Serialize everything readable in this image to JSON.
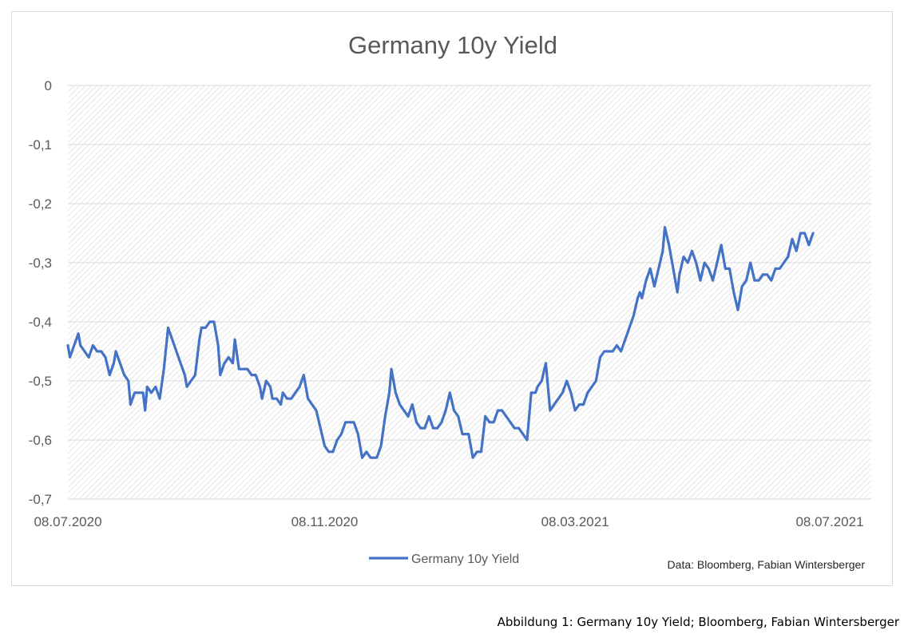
{
  "caption": "Abbildung 1: Germany 10y Yield; Bloomberg, Fabian Wintersberger",
  "source_note": "Data: Bloomberg, Fabian Wintersberger",
  "colors": {
    "line": "#4472c4",
    "gridline": "#d9d9d9",
    "text": "#595959"
  },
  "chart_data": {
    "type": "line",
    "title": "Germany 10y Yield",
    "xlabel": "",
    "ylabel": "",
    "ylim": [
      -0.7,
      0
    ],
    "yticks": [
      0,
      -0.1,
      -0.2,
      -0.3,
      -0.4,
      -0.5,
      -0.6,
      -0.7
    ],
    "ytick_labels": [
      "0",
      "-0,1",
      "-0,2",
      "-0,3",
      "-0,4",
      "-0,5",
      "-0,6",
      "-0,7"
    ],
    "xlim": [
      "2020-07-08",
      "2021-07-08"
    ],
    "xticks": [
      "2020-07-08",
      "2020-11-08",
      "2021-03-08",
      "2021-07-08"
    ],
    "xtick_labels": [
      "08.07.2020",
      "08.11.2020",
      "08.03.2021",
      "08.07.2021"
    ],
    "grid": true,
    "legend_position": "bottom-center",
    "series": [
      {
        "name": "Germany 10y Yield",
        "points": [
          [
            "2020-07-08",
            -0.44
          ],
          [
            "2020-07-09",
            -0.46
          ],
          [
            "2020-07-11",
            -0.44
          ],
          [
            "2020-07-13",
            -0.42
          ],
          [
            "2020-07-14",
            -0.44
          ],
          [
            "2020-07-16",
            -0.45
          ],
          [
            "2020-07-18",
            -0.46
          ],
          [
            "2020-07-20",
            -0.44
          ],
          [
            "2020-07-22",
            -0.45
          ],
          [
            "2020-07-24",
            -0.45
          ],
          [
            "2020-07-26",
            -0.46
          ],
          [
            "2020-07-28",
            -0.49
          ],
          [
            "2020-07-30",
            -0.47
          ],
          [
            "2020-07-31",
            -0.45
          ],
          [
            "2020-08-02",
            -0.47
          ],
          [
            "2020-08-04",
            -0.49
          ],
          [
            "2020-08-06",
            -0.5
          ],
          [
            "2020-08-07",
            -0.54
          ],
          [
            "2020-08-09",
            -0.52
          ],
          [
            "2020-08-11",
            -0.52
          ],
          [
            "2020-08-13",
            -0.52
          ],
          [
            "2020-08-14",
            -0.55
          ],
          [
            "2020-08-15",
            -0.51
          ],
          [
            "2020-08-17",
            -0.52
          ],
          [
            "2020-08-19",
            -0.51
          ],
          [
            "2020-08-21",
            -0.53
          ],
          [
            "2020-08-23",
            -0.48
          ],
          [
            "2020-08-25",
            -0.41
          ],
          [
            "2020-08-27",
            -0.43
          ],
          [
            "2020-08-29",
            -0.45
          ],
          [
            "2020-08-31",
            -0.47
          ],
          [
            "2020-09-02",
            -0.49
          ],
          [
            "2020-09-03",
            -0.51
          ],
          [
            "2020-09-05",
            -0.5
          ],
          [
            "2020-09-07",
            -0.49
          ],
          [
            "2020-09-09",
            -0.43
          ],
          [
            "2020-09-10",
            -0.41
          ],
          [
            "2020-09-12",
            -0.41
          ],
          [
            "2020-09-14",
            -0.4
          ],
          [
            "2020-09-16",
            -0.4
          ],
          [
            "2020-09-18",
            -0.44
          ],
          [
            "2020-09-19",
            -0.49
          ],
          [
            "2020-09-21",
            -0.47
          ],
          [
            "2020-09-23",
            -0.46
          ],
          [
            "2020-09-25",
            -0.47
          ],
          [
            "2020-09-26",
            -0.43
          ],
          [
            "2020-09-28",
            -0.48
          ],
          [
            "2020-09-30",
            -0.48
          ],
          [
            "2020-10-02",
            -0.48
          ],
          [
            "2020-10-04",
            -0.49
          ],
          [
            "2020-10-06",
            -0.49
          ],
          [
            "2020-10-08",
            -0.51
          ],
          [
            "2020-10-09",
            -0.53
          ],
          [
            "2020-10-11",
            -0.5
          ],
          [
            "2020-10-13",
            -0.51
          ],
          [
            "2020-10-14",
            -0.53
          ],
          [
            "2020-10-16",
            -0.53
          ],
          [
            "2020-10-18",
            -0.54
          ],
          [
            "2020-10-19",
            -0.52
          ],
          [
            "2020-10-21",
            -0.53
          ],
          [
            "2020-10-23",
            -0.53
          ],
          [
            "2020-10-25",
            -0.52
          ],
          [
            "2020-10-27",
            -0.51
          ],
          [
            "2020-10-29",
            -0.49
          ],
          [
            "2020-10-31",
            -0.53
          ],
          [
            "2020-11-02",
            -0.54
          ],
          [
            "2020-11-04",
            -0.55
          ],
          [
            "2020-11-06",
            -0.58
          ],
          [
            "2020-11-08",
            -0.61
          ],
          [
            "2020-11-10",
            -0.62
          ],
          [
            "2020-11-12",
            -0.62
          ],
          [
            "2020-11-14",
            -0.6
          ],
          [
            "2020-11-16",
            -0.59
          ],
          [
            "2020-11-18",
            -0.57
          ],
          [
            "2020-11-20",
            -0.57
          ],
          [
            "2020-11-22",
            -0.57
          ],
          [
            "2020-11-24",
            -0.59
          ],
          [
            "2020-11-26",
            -0.63
          ],
          [
            "2020-11-28",
            -0.62
          ],
          [
            "2020-11-30",
            -0.63
          ],
          [
            "2020-12-01",
            -0.63
          ],
          [
            "2020-12-03",
            -0.63
          ],
          [
            "2020-12-05",
            -0.61
          ],
          [
            "2020-12-07",
            -0.56
          ],
          [
            "2020-12-09",
            -0.52
          ],
          [
            "2020-12-10",
            -0.48
          ],
          [
            "2020-12-12",
            -0.52
          ],
          [
            "2020-12-14",
            -0.54
          ],
          [
            "2020-12-16",
            -0.55
          ],
          [
            "2020-12-18",
            -0.56
          ],
          [
            "2020-12-20",
            -0.54
          ],
          [
            "2020-12-22",
            -0.57
          ],
          [
            "2020-12-24",
            -0.58
          ],
          [
            "2020-12-26",
            -0.58
          ],
          [
            "2020-12-28",
            -0.56
          ],
          [
            "2020-12-30",
            -0.58
          ],
          [
            "2021-01-01",
            -0.58
          ],
          [
            "2021-01-03",
            -0.57
          ],
          [
            "2021-01-05",
            -0.55
          ],
          [
            "2021-01-07",
            -0.52
          ],
          [
            "2021-01-09",
            -0.55
          ],
          [
            "2021-01-11",
            -0.56
          ],
          [
            "2021-01-13",
            -0.59
          ],
          [
            "2021-01-14",
            -0.59
          ],
          [
            "2021-01-16",
            -0.59
          ],
          [
            "2021-01-18",
            -0.63
          ],
          [
            "2021-01-20",
            -0.62
          ],
          [
            "2021-01-22",
            -0.62
          ],
          [
            "2021-01-24",
            -0.56
          ],
          [
            "2021-01-26",
            -0.57
          ],
          [
            "2021-01-28",
            -0.57
          ],
          [
            "2021-01-30",
            -0.55
          ],
          [
            "2021-02-01",
            -0.55
          ],
          [
            "2021-02-03",
            -0.56
          ],
          [
            "2021-02-05",
            -0.57
          ],
          [
            "2021-02-07",
            -0.58
          ],
          [
            "2021-02-09",
            -0.58
          ],
          [
            "2021-02-11",
            -0.59
          ],
          [
            "2021-02-13",
            -0.6
          ],
          [
            "2021-02-15",
            -0.52
          ],
          [
            "2021-02-17",
            -0.52
          ],
          [
            "2021-02-18",
            -0.51
          ],
          [
            "2021-02-20",
            -0.5
          ],
          [
            "2021-02-22",
            -0.47
          ],
          [
            "2021-02-24",
            -0.55
          ],
          [
            "2021-02-26",
            -0.54
          ],
          [
            "2021-02-28",
            -0.53
          ],
          [
            "2021-03-02",
            -0.52
          ],
          [
            "2021-03-04",
            -0.5
          ],
          [
            "2021-03-06",
            -0.52
          ],
          [
            "2021-03-08",
            -0.55
          ],
          [
            "2021-03-10",
            -0.54
          ],
          [
            "2021-03-12",
            -0.54
          ],
          [
            "2021-03-14",
            -0.52
          ],
          [
            "2021-03-16",
            -0.51
          ],
          [
            "2021-03-18",
            -0.5
          ],
          [
            "2021-03-20",
            -0.46
          ],
          [
            "2021-03-22",
            -0.45
          ],
          [
            "2021-03-24",
            -0.45
          ],
          [
            "2021-03-26",
            -0.45
          ],
          [
            "2021-03-28",
            -0.44
          ],
          [
            "2021-03-30",
            -0.45
          ],
          [
            "2021-04-01",
            -0.43
          ],
          [
            "2021-04-03",
            -0.41
          ],
          [
            "2021-04-05",
            -0.39
          ],
          [
            "2021-04-07",
            -0.36
          ],
          [
            "2021-04-08",
            -0.35
          ],
          [
            "2021-04-09",
            -0.36
          ],
          [
            "2021-04-11",
            -0.33
          ],
          [
            "2021-04-13",
            -0.31
          ],
          [
            "2021-04-15",
            -0.34
          ],
          [
            "2021-04-17",
            -0.31
          ],
          [
            "2021-04-19",
            -0.28
          ],
          [
            "2021-04-20",
            -0.24
          ],
          [
            "2021-04-22",
            -0.27
          ],
          [
            "2021-04-24",
            -0.31
          ],
          [
            "2021-04-26",
            -0.35
          ],
          [
            "2021-04-27",
            -0.32
          ],
          [
            "2021-04-29",
            -0.29
          ],
          [
            "2021-05-01",
            -0.3
          ],
          [
            "2021-05-03",
            -0.28
          ],
          [
            "2021-05-05",
            -0.3
          ],
          [
            "2021-05-07",
            -0.33
          ],
          [
            "2021-05-09",
            -0.3
          ],
          [
            "2021-05-11",
            -0.31
          ],
          [
            "2021-05-13",
            -0.33
          ],
          [
            "2021-05-15",
            -0.3
          ],
          [
            "2021-05-17",
            -0.27
          ],
          [
            "2021-05-19",
            -0.31
          ],
          [
            "2021-05-21",
            -0.31
          ],
          [
            "2021-05-23",
            -0.35
          ],
          [
            "2021-05-25",
            -0.38
          ],
          [
            "2021-05-27",
            -0.34
          ],
          [
            "2021-05-29",
            -0.33
          ],
          [
            "2021-05-31",
            -0.3
          ],
          [
            "2021-06-02",
            -0.33
          ],
          [
            "2021-06-04",
            -0.33
          ],
          [
            "2021-06-06",
            -0.32
          ],
          [
            "2021-06-08",
            -0.32
          ],
          [
            "2021-06-10",
            -0.33
          ],
          [
            "2021-06-12",
            -0.31
          ],
          [
            "2021-06-14",
            -0.31
          ],
          [
            "2021-06-16",
            -0.3
          ],
          [
            "2021-06-18",
            -0.29
          ],
          [
            "2021-06-20",
            -0.26
          ],
          [
            "2021-06-22",
            -0.28
          ],
          [
            "2021-06-24",
            -0.25
          ],
          [
            "2021-06-26",
            -0.25
          ],
          [
            "2021-06-28",
            -0.27
          ],
          [
            "2021-06-30",
            -0.25
          ]
        ]
      }
    ]
  }
}
